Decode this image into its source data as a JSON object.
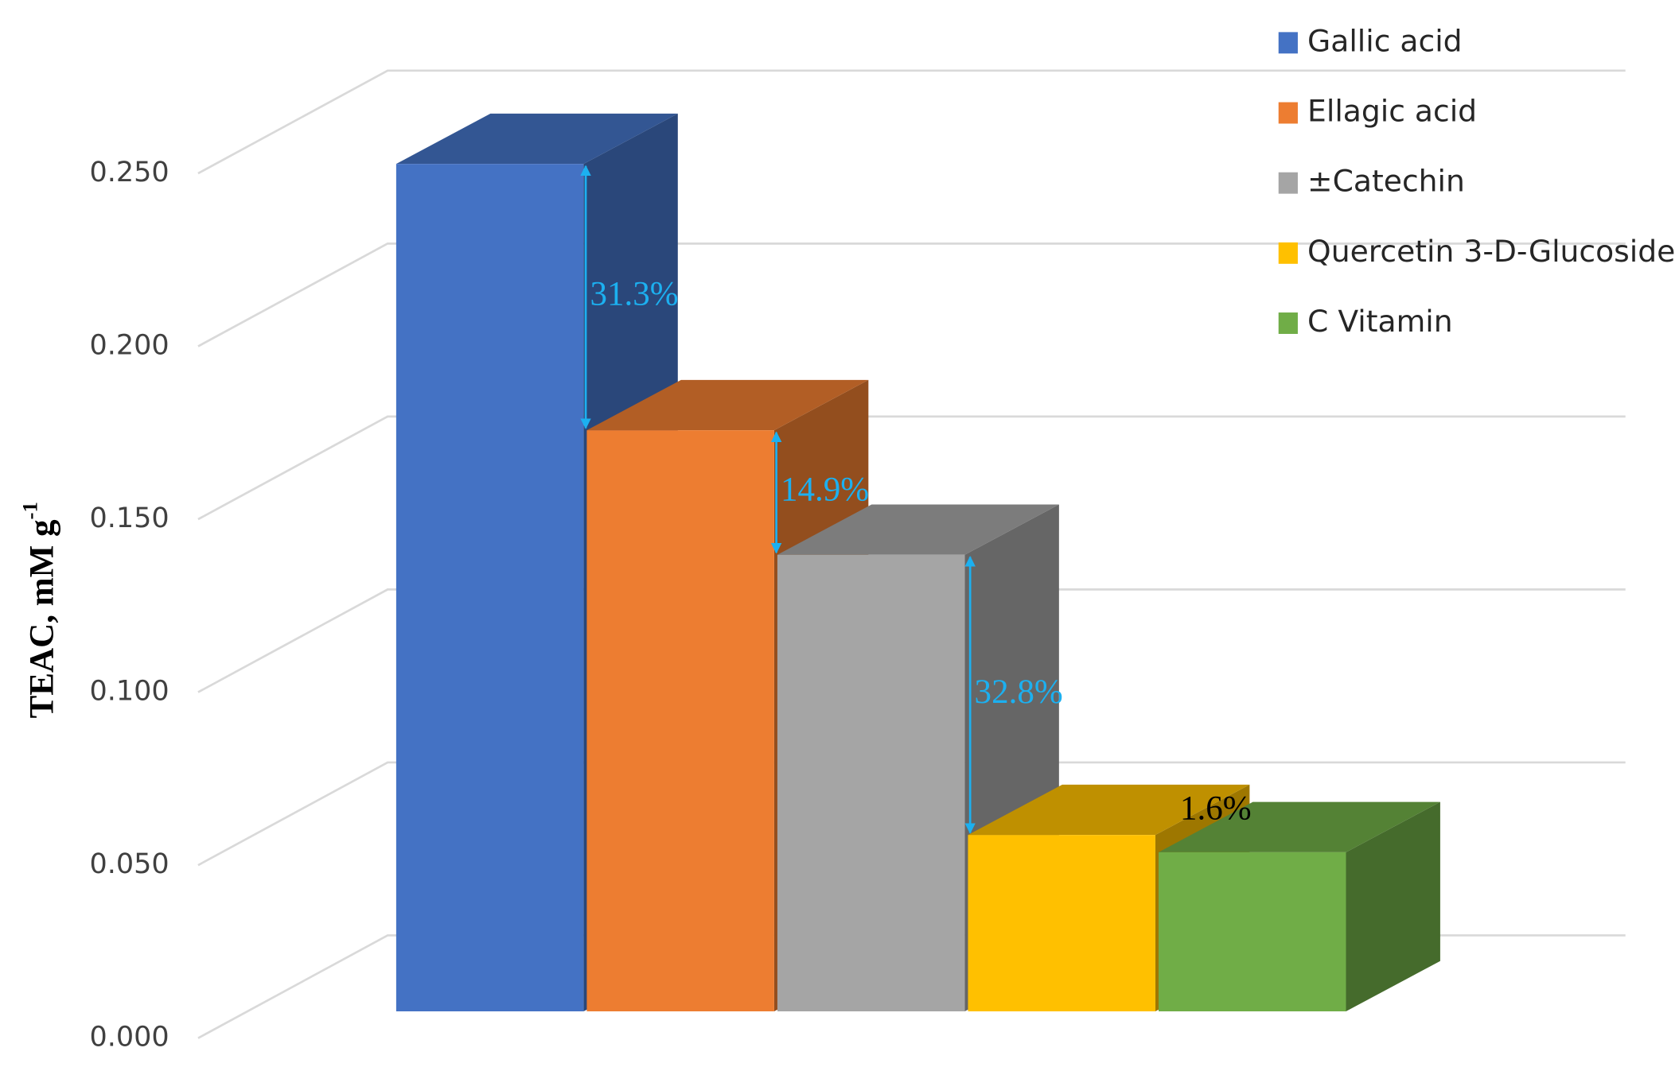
{
  "chart_data": {
    "type": "bar3d",
    "y_label": {
      "text": "TEAC, mM g",
      "superscript": "-1"
    },
    "series": [
      {
        "name": "Gallic acid",
        "color": "#4472c4",
        "values": [
          0.245
        ]
      },
      {
        "name": "Ellagic acid",
        "color": "#ed7d31",
        "values": [
          0.168
        ]
      },
      {
        "name": "±Catechin",
        "color": "#a5a5a5",
        "values": [
          0.132
        ]
      },
      {
        "name": "Quercetin 3-D-Glucoside",
        "color": "#ffc000",
        "values": [
          0.051
        ]
      },
      {
        "name": "C Vitamin",
        "color": "#70ad47",
        "values": [
          0.046
        ]
      }
    ],
    "annotations": [
      "31.3%",
      "14.9%",
      "32.8%",
      "1.6%"
    ],
    "ylim": [
      0,
      0.25
    ],
    "yticks": [
      {
        "value": 0,
        "label": "0.000"
      },
      {
        "value": 0.05,
        "label": "0.050"
      },
      {
        "value": 0.1,
        "label": "0.100"
      },
      {
        "value": 0.15,
        "label": "0.150"
      },
      {
        "value": 0.2,
        "label": "0.200"
      },
      {
        "value": 0.25,
        "label": "0.250"
      }
    ],
    "grid": true,
    "legend": "top-right"
  }
}
